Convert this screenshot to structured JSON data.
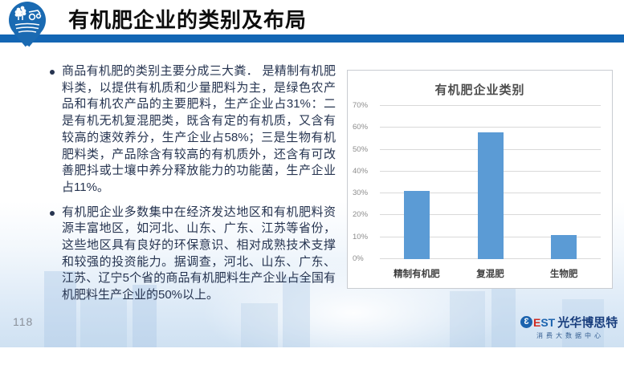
{
  "header": {
    "title": "有机肥企业的类别及布局"
  },
  "content": {
    "bullets": [
      {
        "text": "商品有机肥的类别主要分成三大粪． 是精制有机肥料类，以提供有机质和少量肥料为主，是绿色农产品和有机农产品的主要肥料，生产企业占31%：二是有机无机复混肥类，既含有定的有机质，又含有较高的速效养分，生产企业占58%；三是生物有机肥料类，产品除含有较高的有机质外，还含有可改善肥抖或士壤中养分释放能力的功能菌，生产企业占11%。"
      },
      {
        "text": "有机肥企业多数集中在经济发达地区和有机肥料资源丰富地区，如河北、山东、广东、江苏等省份，这些地区具有良好的环保意识、相对成熟技术支撑和较强的投资能力。据调查，河北、山东、广东、江苏、辽宁5个省的商品有机肥料生产企业占全国有机肥料生产企业的50%以上。"
      }
    ]
  },
  "chart_data": {
    "type": "bar",
    "title": "有机肥企业类别",
    "categories": [
      "精制有机肥",
      "复混肥",
      "生物肥"
    ],
    "values": [
      31,
      58,
      11
    ],
    "ylabel": "",
    "xlabel": "",
    "ylim": [
      0,
      70
    ],
    "ytick_step": 10,
    "ytick_suffix": "%",
    "grid": true,
    "legend": false,
    "bar_color": "#5b9bd5"
  },
  "footer": {
    "page_number": "118",
    "logo": {
      "b": "3",
      "e": "E",
      "st": "ST",
      "name": "光华博思特",
      "subtitle": "消费大数据中心"
    }
  },
  "colors": {
    "divider_blue": "#1366b4",
    "bar_blue": "#5b9bd5",
    "text_navy": "#263450",
    "logo_red": "#d02a20",
    "logo_blue": "#1b63ae"
  }
}
